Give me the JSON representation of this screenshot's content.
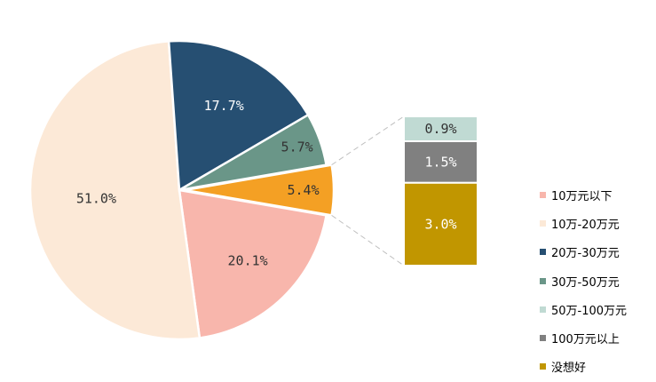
{
  "chart_data": {
    "type": "pie",
    "slices": [
      {
        "label": "10万元以下",
        "value": 20.1,
        "value_label": "20.1%",
        "color": "#F8B6AC",
        "text_color": "#333333"
      },
      {
        "label": "10万-20万元",
        "value": 51.0,
        "value_label": "51.0%",
        "color": "#FCE9D7",
        "text_color": "#333333"
      },
      {
        "label": "20万-30万元",
        "value": 17.7,
        "value_label": "17.7%",
        "color": "#264F72",
        "text_color": "#ffffff"
      },
      {
        "label": "30万-50万元",
        "value": 5.7,
        "value_label": "5.7%",
        "color": "#6A9688",
        "text_color": "#333333"
      }
    ],
    "other_slice": {
      "value": 5.4,
      "value_label": "5.4%",
      "color": "#F4A024",
      "text_color": "#333333",
      "exploded": true
    },
    "breakdown_bar": [
      {
        "label": "没想好",
        "value": 3.0,
        "value_label": "3.0%",
        "color": "#C19600",
        "text_color": "#ffffff"
      },
      {
        "label": "100万元以上",
        "value": 1.5,
        "value_label": "1.5%",
        "color": "#808080",
        "text_color": "#ffffff"
      },
      {
        "label": "50万-100万元",
        "value": 0.9,
        "value_label": "0.9%",
        "color": "#C0DAD3",
        "text_color": "#333333"
      }
    ],
    "legend": [
      {
        "label": "10万元以下",
        "color": "#F8B6AC"
      },
      {
        "label": "10万-20万元",
        "color": "#FCE9D7"
      },
      {
        "label": "20万-30万元",
        "color": "#264F72"
      },
      {
        "label": "30万-50万元",
        "color": "#6A9688"
      },
      {
        "label": "50万-100万元",
        "color": "#C0DAD3"
      },
      {
        "label": "100万元以上",
        "color": "#808080"
      },
      {
        "label": "没想好",
        "color": "#C19600"
      }
    ],
    "legend_position": "right"
  }
}
